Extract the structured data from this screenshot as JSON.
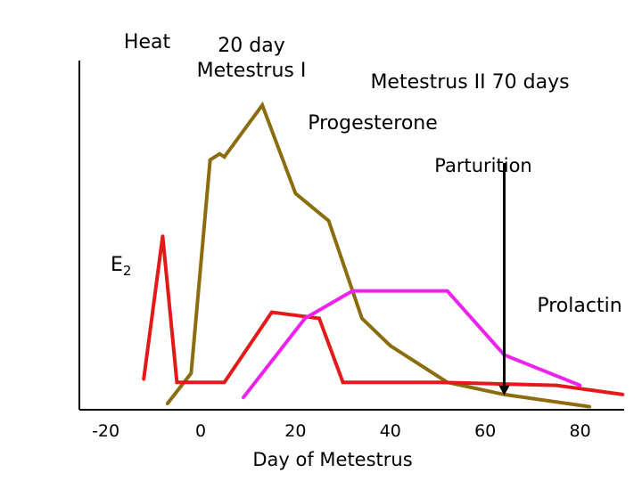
{
  "phase_labels": {
    "heat": "Heat",
    "metestrus_1_line1": "20 day",
    "metestrus_1_line2": "Metestrus I",
    "metestrus_2": "Metestrus II 70 days"
  },
  "annotations": {
    "progesterone": "Progesterone",
    "parturition": "Parturition",
    "e2_letter": "E",
    "e2_sub": "2",
    "prolactin": "Prolactin"
  },
  "colors": {
    "progesterone": "#8b6d10",
    "estradiol": "#e41a1a",
    "prolactin": "#ee22ee",
    "axis": "#000000",
    "phase_bar": "#000000"
  },
  "chart_data": {
    "type": "line",
    "title": "",
    "xlabel": "Day of Metestrus",
    "ylabel": "",
    "xlim": [
      -20,
      90
    ],
    "ylim": [
      0,
      100
    ],
    "x_ticks": [
      -20,
      0,
      20,
      40,
      60,
      80
    ],
    "x_tick_labels": [
      "-20",
      "0",
      "20",
      "40",
      "60",
      "80"
    ],
    "grid": false,
    "series": [
      {
        "name": "Progesterone",
        "color_key": "progesterone",
        "points": [
          [
            -7,
            2
          ],
          [
            -2,
            12
          ],
          [
            2,
            82
          ],
          [
            4,
            84
          ],
          [
            5,
            83
          ],
          [
            13,
            100
          ],
          [
            20,
            71
          ],
          [
            27,
            62
          ],
          [
            34,
            30
          ],
          [
            40,
            21
          ],
          [
            52,
            9
          ],
          [
            64,
            5
          ],
          [
            82,
            1
          ]
        ]
      },
      {
        "name": "E2",
        "color_key": "estradiol",
        "points": [
          [
            -12,
            10
          ],
          [
            -8,
            57
          ],
          [
            -5,
            9
          ],
          [
            5,
            9
          ],
          [
            15,
            32
          ],
          [
            25,
            30
          ],
          [
            30,
            9
          ],
          [
            50,
            9
          ],
          [
            75,
            8
          ],
          [
            89,
            5
          ]
        ]
      },
      {
        "name": "Prolactin",
        "color_key": "prolactin",
        "points": [
          [
            9,
            4
          ],
          [
            22,
            30
          ],
          [
            32,
            39
          ],
          [
            52,
            39
          ],
          [
            64,
            18
          ],
          [
            80,
            8
          ]
        ]
      }
    ],
    "phases": [
      {
        "name": "Heat",
        "x_start": -22,
        "x_end": -5,
        "y": 176
      },
      {
        "name": "Metestrus I",
        "x_start": 5,
        "x_end": 18,
        "y": 160
      },
      {
        "name": "Metestrus II",
        "x_start": 23,
        "x_end": 90,
        "y": 154
      }
    ],
    "markers": [
      {
        "name": "Parturition",
        "x": 64,
        "y_from": 81,
        "y_to": 5
      }
    ]
  }
}
